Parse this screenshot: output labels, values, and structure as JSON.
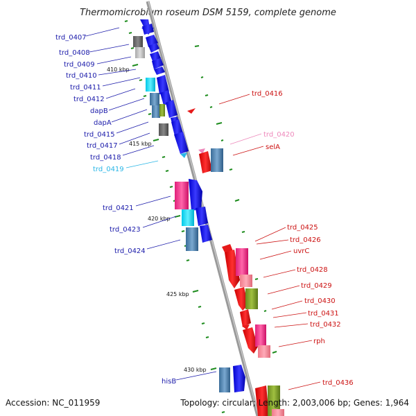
{
  "title": "Thermomicrobium roseum DSM 5159, complete genome",
  "footer": {
    "accession": "Accession: NC_011959",
    "topology": "Topology: circular; Length: 2,003,006 bp; Genes: 1,964"
  },
  "scale_labels": [
    "410 kbp",
    "415 kbp",
    "420 kbp",
    "425 kbp",
    "430 kbp"
  ],
  "left_labels": [
    {
      "text": "trd_0407",
      "color": "#1a1aaa"
    },
    {
      "text": "trd_0408",
      "color": "#1a1aaa"
    },
    {
      "text": "trd_0409",
      "color": "#1a1aaa"
    },
    {
      "text": "trd_0410",
      "color": "#1a1aaa"
    },
    {
      "text": "trd_0411",
      "color": "#1a1aaa"
    },
    {
      "text": "trd_0412",
      "color": "#1a1aaa"
    },
    {
      "text": "dapB",
      "color": "#1a1aaa"
    },
    {
      "text": "dapA",
      "color": "#1a1aaa"
    },
    {
      "text": "trd_0415",
      "color": "#1a1aaa"
    },
    {
      "text": "trd_0417",
      "color": "#1a1aaa"
    },
    {
      "text": "trd_0418",
      "color": "#1a1aaa"
    },
    {
      "text": "trd_0419",
      "color": "#29b6e6"
    },
    {
      "text": "trd_0421",
      "color": "#1a1aaa"
    },
    {
      "text": "trd_0423",
      "color": "#1a1aaa"
    },
    {
      "text": "trd_0424",
      "color": "#1a1aaa"
    },
    {
      "text": "hisB",
      "color": "#1a1aaa"
    }
  ],
  "right_labels": [
    {
      "text": "trd_0416",
      "color": "#cc1111"
    },
    {
      "text": "trd_0420",
      "color": "#ee88bb"
    },
    {
      "text": "selA",
      "color": "#cc1111"
    },
    {
      "text": "trd_0425",
      "color": "#cc1111"
    },
    {
      "text": "trd_0426",
      "color": "#cc1111"
    },
    {
      "text": "uvrC",
      "color": "#cc1111"
    },
    {
      "text": "trd_0428",
      "color": "#cc1111"
    },
    {
      "text": "trd_0429",
      "color": "#cc1111"
    },
    {
      "text": "trd_0430",
      "color": "#cc1111"
    },
    {
      "text": "trd_0431",
      "color": "#cc1111"
    },
    {
      "text": "trd_0432",
      "color": "#cc1111"
    },
    {
      "text": "rph",
      "color": "#cc1111"
    },
    {
      "text": "trd_0436",
      "color": "#cc1111"
    }
  ],
  "colors": {
    "forward_gene": "#1a1ae6",
    "reverse_gene": "#e61a1a",
    "backbone": "#8a8a8a",
    "tick": "#1e8c1e"
  }
}
